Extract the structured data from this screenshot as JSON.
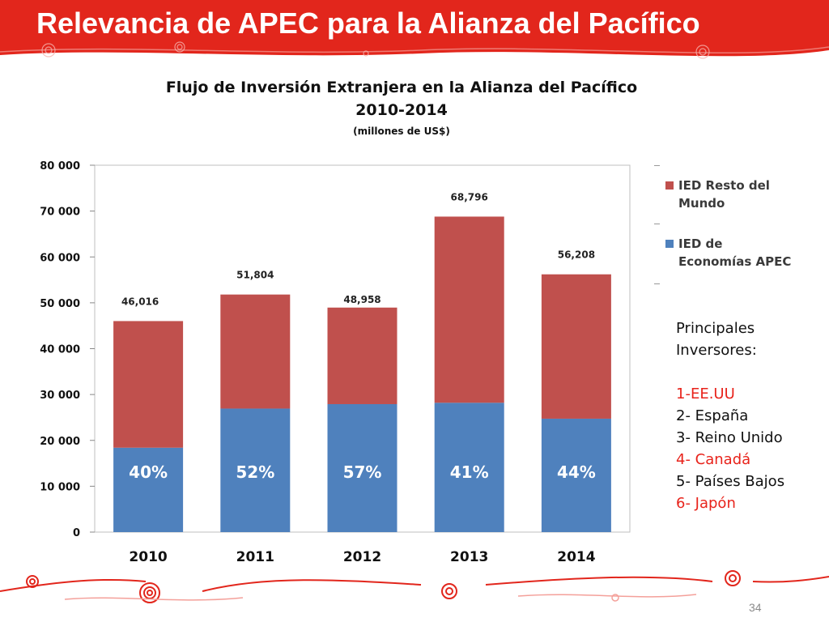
{
  "slide": {
    "title": "Relevancia de APEC para la Alianza del Pacífico",
    "page_number": "34",
    "brand_color": "#e2261c"
  },
  "legend": {
    "items": [
      {
        "label_line1": "IED Resto del",
        "label_line2": "Mundo",
        "color": "#c0504d"
      },
      {
        "label_line1": "IED de",
        "label_line2": "Economías APEC",
        "color": "#4f81bd"
      }
    ]
  },
  "investors": {
    "heading_line1": "Principales",
    "heading_line2": "Inversores:",
    "list": [
      {
        "text": "1-EE.UU",
        "highlight": true
      },
      {
        "text": "2- España",
        "highlight": false
      },
      {
        "text": "3- Reino Unido",
        "highlight": false
      },
      {
        "text": "4- Canadá",
        "highlight": true
      },
      {
        "text": "5- Países Bajos",
        "highlight": false
      },
      {
        "text": "6- Japón",
        "highlight": true
      }
    ]
  },
  "chart_data": {
    "type": "bar",
    "stacked": true,
    "title_line1": "Flujo de Inversión Extranjera en la Alianza del Pacífico",
    "title_line2": "2010-2014",
    "subtitle": "(millones de US$)",
    "categories": [
      "2010",
      "2011",
      "2012",
      "2013",
      "2014"
    ],
    "series": [
      {
        "name": "IED de Economías APEC",
        "color": "#4f81bd",
        "values": [
          18406,
          26938,
          27906,
          28206,
          24732
        ],
        "labels": [
          "40%",
          "52%",
          "57%",
          "41%",
          "44%"
        ]
      },
      {
        "name": "IED Resto del Mundo",
        "color": "#c0504d",
        "values": [
          27610,
          24866,
          21052,
          40590,
          31476
        ]
      }
    ],
    "totals": [
      46016,
      51804,
      48958,
      68796,
      56208
    ],
    "total_labels": [
      "46,016",
      "51,804",
      "48,958",
      "68,796",
      "56,208"
    ],
    "ylim": [
      0,
      80000
    ],
    "yticks": [
      0,
      10000,
      20000,
      30000,
      40000,
      50000,
      60000,
      70000,
      80000
    ],
    "ytick_labels": [
      "0",
      "10 000",
      "20 000",
      "30 000",
      "40 000",
      "50 000",
      "60 000",
      "70 000",
      "80 000"
    ],
    "grid": false,
    "legend_position": "right"
  }
}
